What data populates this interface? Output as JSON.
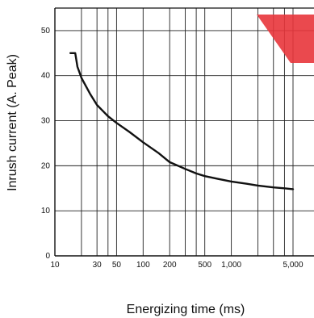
{
  "chart_data": {
    "type": "line",
    "title": "",
    "xlabel": "Energizing time (ms)",
    "ylabel": "Inrush current (A. Peak)",
    "x_scale": "log",
    "xlim": [
      10,
      5000
    ],
    "ylim": [
      0,
      55
    ],
    "grid": true,
    "xticks": [
      {
        "value": 10,
        "label": "10"
      },
      {
        "value": 30,
        "label": "30"
      },
      {
        "value": 50,
        "label": "50"
      },
      {
        "value": 100,
        "label": "100"
      },
      {
        "value": 200,
        "label": "200"
      },
      {
        "value": 500,
        "label": "500"
      },
      {
        "value": 1000,
        "label": "1,000"
      },
      {
        "value": 5000,
        "label": "5,000"
      }
    ],
    "x_gridlines": [
      10,
      20,
      30,
      40,
      50,
      100,
      200,
      300,
      400,
      500,
      1000,
      2000,
      3000,
      4000,
      5000
    ],
    "yticks": [
      {
        "value": 0,
        "label": "0"
      },
      {
        "value": 10,
        "label": "10"
      },
      {
        "value": 20,
        "label": "20"
      },
      {
        "value": 30,
        "label": "30"
      },
      {
        "value": 40,
        "label": "40"
      },
      {
        "value": 50,
        "label": "50"
      }
    ],
    "series": [
      {
        "color": "#111111",
        "points": [
          [
            15,
            45
          ],
          [
            17,
            45
          ],
          [
            18,
            42
          ],
          [
            20,
            39.5
          ],
          [
            25,
            36
          ],
          [
            30,
            33.5
          ],
          [
            40,
            31
          ],
          [
            50,
            29.5
          ],
          [
            70,
            27.5
          ],
          [
            100,
            25.2
          ],
          [
            150,
            22.8
          ],
          [
            200,
            20.8
          ],
          [
            300,
            19.3
          ],
          [
            400,
            18.3
          ],
          [
            500,
            17.7
          ],
          [
            700,
            17.1
          ],
          [
            1000,
            16.5
          ],
          [
            1500,
            16
          ],
          [
            2000,
            15.6
          ],
          [
            3000,
            15.2
          ],
          [
            4000,
            15
          ],
          [
            5000,
            14.8
          ]
        ]
      }
    ]
  }
}
